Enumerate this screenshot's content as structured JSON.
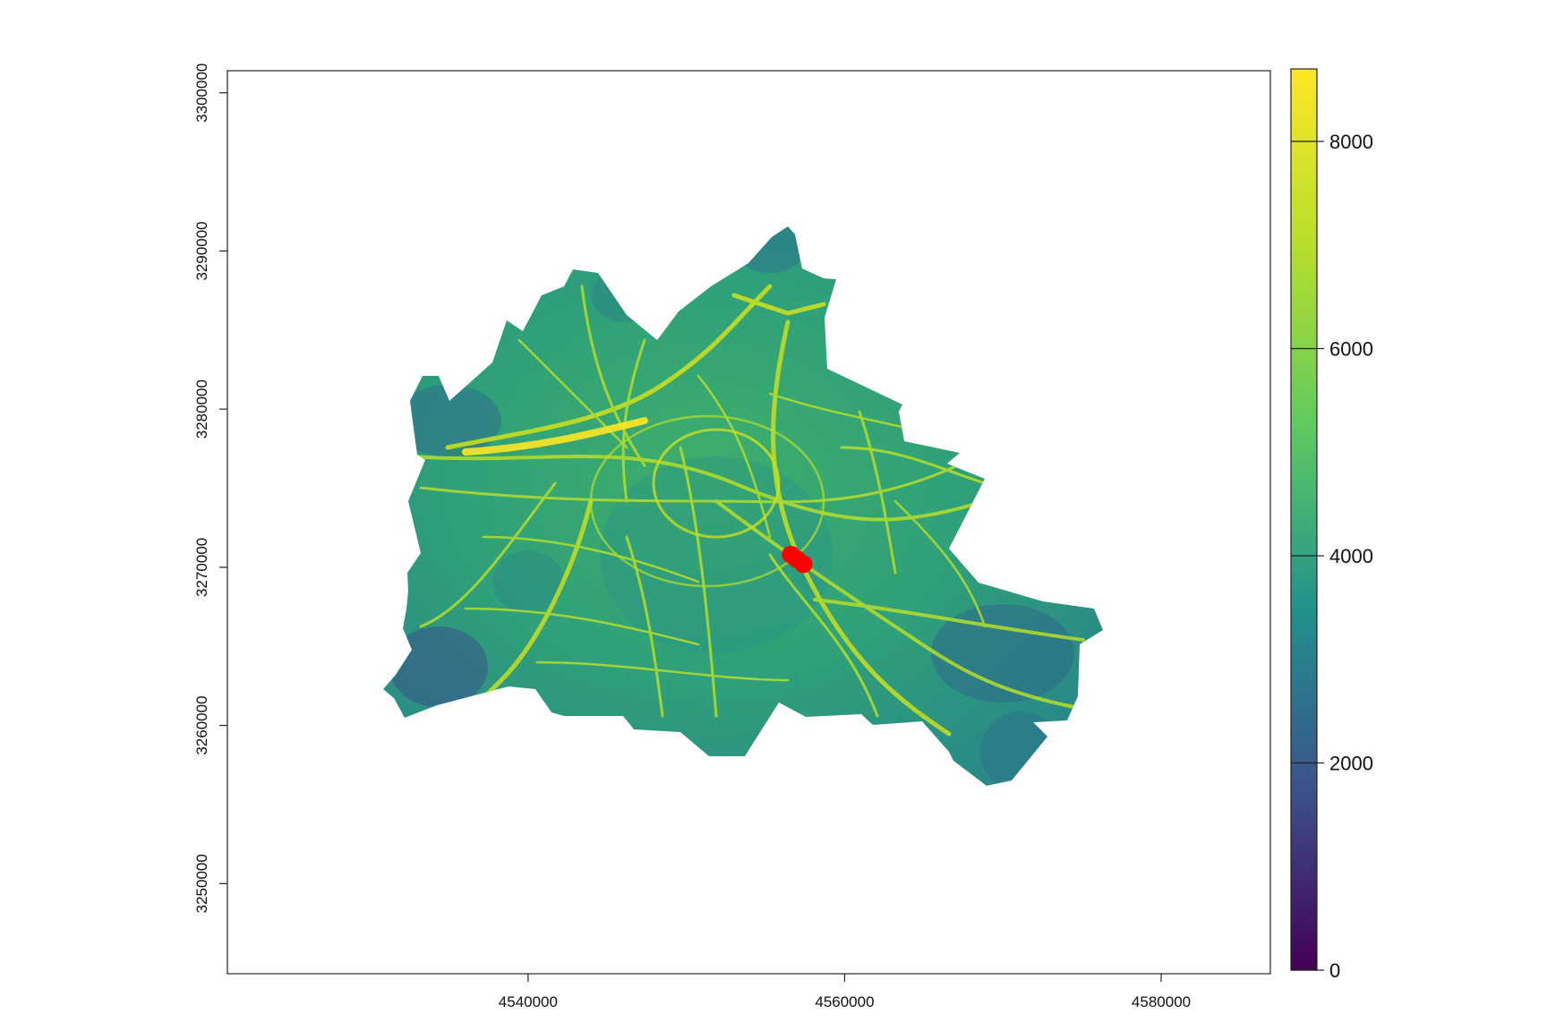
{
  "map": {
    "x_axis": {
      "ticks": [
        "4540000",
        "4560000",
        "4580000"
      ],
      "values": [
        4540000,
        4560000,
        4580000
      ],
      "range": [
        4521000,
        4586900
      ]
    },
    "y_axis": {
      "ticks": [
        "3250000",
        "3260000",
        "3270000",
        "3280000",
        "3290000",
        "3300000"
      ],
      "values": [
        3250000,
        3260000,
        3270000,
        3280000,
        3290000,
        3300000
      ],
      "range": [
        3244300,
        3301400
      ]
    },
    "raster": {
      "palette": "viridis",
      "colors": [
        "#440154",
        "#3b528b",
        "#21918c",
        "#5ec962",
        "#b5de2b",
        "#fde725"
      ],
      "highlight_color": "#ff0000",
      "highlight_points": [
        {
          "x": 4556600,
          "y": 3270800
        },
        {
          "x": 4557000,
          "y": 3270500
        },
        {
          "x": 4557400,
          "y": 3270200
        }
      ]
    },
    "legend": {
      "ticks": [
        "0",
        "2000",
        "4000",
        "6000",
        "8000"
      ],
      "values": [
        0,
        2000,
        4000,
        6000,
        8000
      ],
      "max": 8700
    }
  }
}
